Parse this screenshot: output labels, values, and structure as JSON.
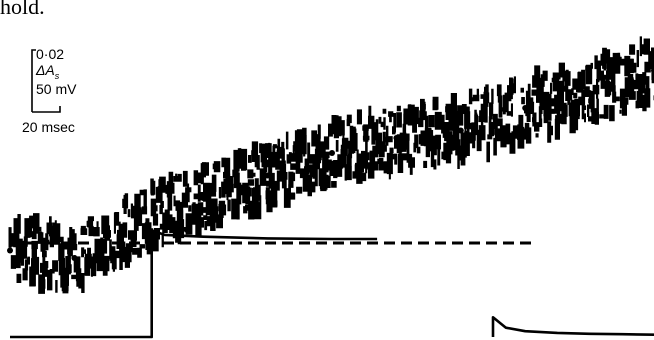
{
  "page_fragment": "hold.",
  "chart_data": {
    "type": "line",
    "title": "",
    "xlabel": "",
    "ylabel": "",
    "grid": false,
    "legend": "none",
    "ink_color": "#000000",
    "scale_bar": {
      "absorbance_value": "0·02",
      "absorbance_symbol": "ΔA",
      "absorbance_subscript": "s",
      "voltage": "50 mV",
      "time": "20 msec"
    },
    "x_range_ms": [
      0,
      100
    ],
    "series": [
      {
        "kind": "optical_noise_band",
        "x": [
          0,
          10,
          20,
          30,
          40,
          50,
          60,
          70,
          80,
          90,
          100
        ],
        "values": [
          -0.001,
          -0.002,
          0.003,
          0.006,
          0.009,
          0.012,
          0.014,
          0.015,
          0.018,
          0.02,
          0.023
        ]
      },
      {
        "kind": "membrane_potential",
        "x": [
          0,
          22,
          22,
          24,
          30,
          40,
          50,
          57,
          57,
          60,
          70,
          80,
          85,
          90,
          100
        ],
        "values": [
          -88,
          -88,
          4,
          0,
          -1.5,
          -3,
          -3.5,
          -3.5,
          null,
          null,
          null,
          null,
          null,
          null,
          null
        ]
      },
      {
        "kind": "membrane_potential_tail",
        "x": [
          75,
          75,
          77,
          80,
          85,
          90,
          95,
          100
        ],
        "values": [
          -88,
          -71,
          -80,
          -83,
          -84.5,
          -85.2,
          -85.6,
          -86
        ]
      },
      {
        "kind": "baseline",
        "x": [
          0,
          81
        ],
        "values": [
          0,
          0
        ]
      }
    ]
  }
}
